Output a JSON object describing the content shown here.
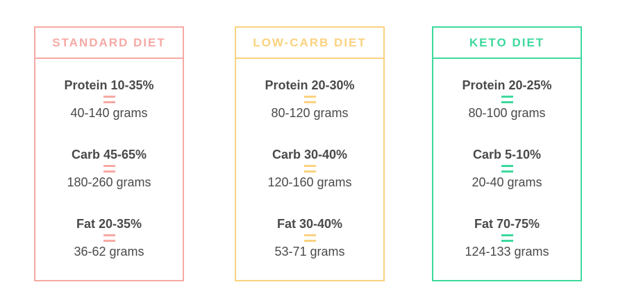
{
  "cards": [
    {
      "title": "STANDARD DIET",
      "accent": "#f6a9a4",
      "macros": [
        {
          "name": "Protein 10-35%",
          "grams": "40-140 grams"
        },
        {
          "name": "Carb 45-65%",
          "grams": "180-260 grams"
        },
        {
          "name": "Fat 20-35%",
          "grams": "36-62 grams"
        }
      ]
    },
    {
      "title": "LOW-CARB DIET",
      "accent": "#fbd27f",
      "macros": [
        {
          "name": "Protein 20-30%",
          "grams": "80-120 grams"
        },
        {
          "name": "Carb 30-40%",
          "grams": "120-160 grams"
        },
        {
          "name": "Fat 30-40%",
          "grams": "53-71 grams"
        }
      ]
    },
    {
      "title": "KETO DIET",
      "accent": "#3dd99c",
      "macros": [
        {
          "name": "Protein 20-25%",
          "grams": "80-100 grams"
        },
        {
          "name": "Carb 5-10%",
          "grams": "20-40 grams"
        },
        {
          "name": "Fat 70-75%",
          "grams": "124-133 grams"
        }
      ]
    }
  ]
}
